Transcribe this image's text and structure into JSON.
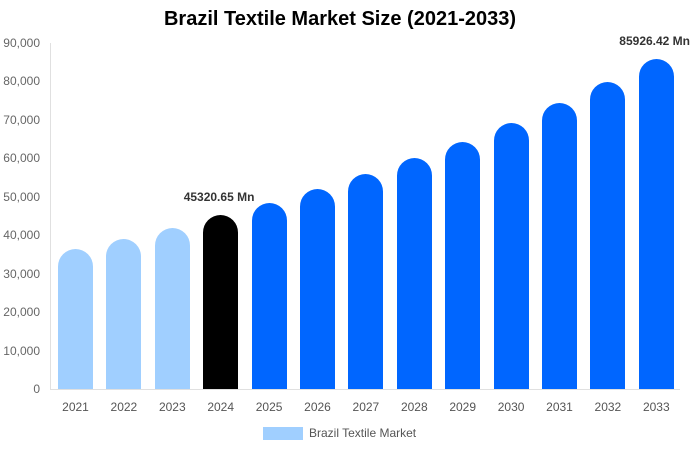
{
  "chart_data": {
    "type": "bar",
    "title": "Brazil Textile Market Size (2021-2033)",
    "xlabel": "",
    "ylabel": "",
    "ylim": [
      0,
      90000
    ],
    "yticks": [
      "0",
      "10,000",
      "20,000",
      "30,000",
      "40,000",
      "50,000",
      "60,000",
      "70,000",
      "80,000",
      "90,000"
    ],
    "categories": [
      "2021",
      "2022",
      "2023",
      "2024",
      "2025",
      "2026",
      "2027",
      "2028",
      "2029",
      "2030",
      "2031",
      "2032",
      "2033"
    ],
    "series": [
      {
        "name": "Brazil Textile Market",
        "values": [
          36400,
          39000,
          41900,
          45320.65,
          48400,
          52000,
          55900,
          60100,
          64300,
          69200,
          74400,
          79900,
          85926.42
        ]
      }
    ],
    "annotations": [
      {
        "category": "2024",
        "text": "45320.65 Mn"
      },
      {
        "category": "2033",
        "text": "85926.42 Mn"
      }
    ],
    "colors": {
      "historical": "#a0cfff",
      "base_year": "#000000",
      "forecast": "#0066ff"
    },
    "grid": false,
    "legend_position": "bottom"
  },
  "legend": {
    "label": "Brazil Textile Market"
  }
}
